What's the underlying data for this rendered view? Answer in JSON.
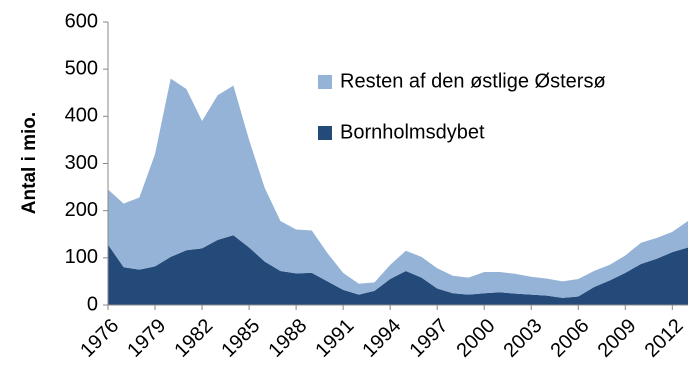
{
  "chart_data": {
    "type": "stacked_area",
    "y_label": "Antal i mio.",
    "x": [
      1976,
      1977,
      1978,
      1979,
      1980,
      1981,
      1982,
      1983,
      1984,
      1985,
      1986,
      1987,
      1988,
      1989,
      1990,
      1991,
      1992,
      1993,
      1994,
      1995,
      1996,
      1997,
      1998,
      1999,
      2000,
      2001,
      2002,
      2003,
      2004,
      2005,
      2006,
      2007,
      2008,
      2009,
      2010,
      2011,
      2012,
      2013
    ],
    "series": [
      {
        "name": "Bornholmsdybet",
        "color": "#244a7a",
        "values": [
          128,
          80,
          75,
          82,
          102,
          116,
          120,
          138,
          148,
          122,
          92,
          72,
          67,
          68,
          50,
          32,
          22,
          30,
          55,
          72,
          58,
          35,
          25,
          22,
          25,
          27,
          24,
          22,
          20,
          15,
          18,
          38,
          52,
          68,
          87,
          98,
          112,
          122
        ]
      },
      {
        "name": "Resten af den østlige Østersø",
        "color": "#95b3d7",
        "values": [
          117,
          135,
          153,
          238,
          378,
          342,
          270,
          307,
          317,
          228,
          156,
          106,
          93,
          90,
          60,
          36,
          23,
          18,
          30,
          43,
          44,
          43,
          37,
          36,
          45,
          43,
          42,
          38,
          36,
          35,
          37,
          34,
          33,
          37,
          45,
          44,
          43,
          56
        ]
      }
    ],
    "xlim": [
      1976,
      2013
    ],
    "xticks": [
      1976,
      1979,
      1982,
      1985,
      1988,
      1991,
      1994,
      1997,
      2000,
      2003,
      2006,
      2009,
      2012
    ],
    "ylim": [
      0,
      600
    ],
    "yticks": [
      0,
      100,
      200,
      300,
      400,
      500,
      600
    ],
    "grid": false,
    "legend": "upper right"
  }
}
